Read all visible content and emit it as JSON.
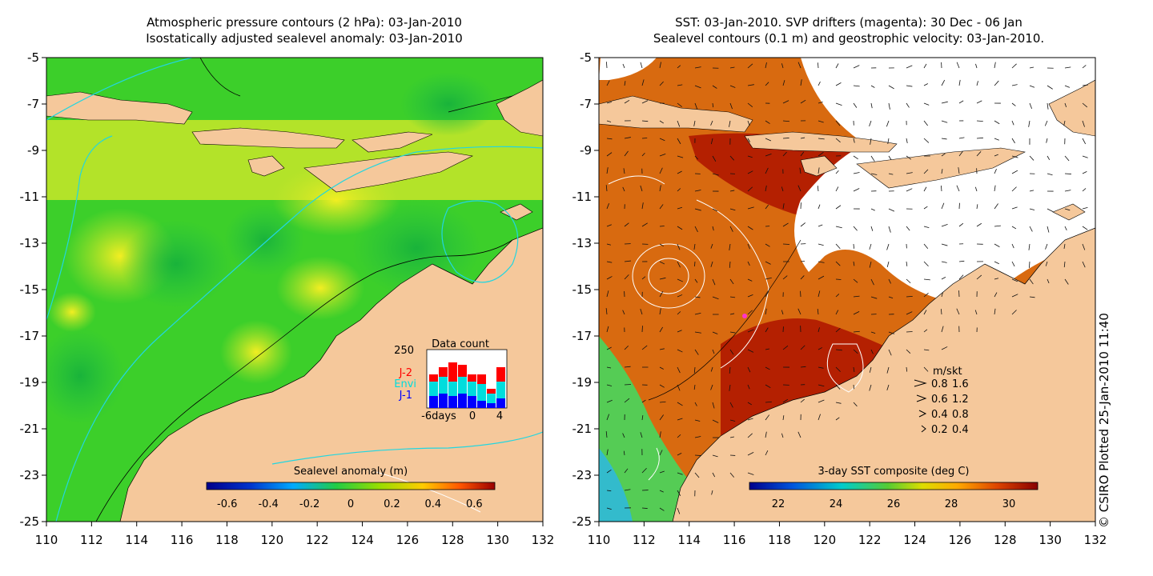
{
  "left_panel": {
    "title_line1": "Atmospheric pressure contours (2 hPa): 03-Jan-2010",
    "title_line2": "Isostatically adjusted sealevel anomaly: 03-Jan-2010",
    "colorbar": {
      "label": "Sealevel anomaly (m)",
      "ticks": [
        "-0.6",
        "-0.4",
        "-0.2",
        "0",
        "0.2",
        "0.4",
        "0.6"
      ],
      "colors": [
        "#00008b",
        "#0033cc",
        "#0099ff",
        "#00e0e0",
        "#22cc44",
        "#66dd00",
        "#ccee00",
        "#ffdd00",
        "#ffaa00",
        "#ff5500",
        "#cc0000",
        "#990000"
      ]
    },
    "data_count": {
      "title": "Data count",
      "max_label": "250",
      "x_labels": [
        "-6days",
        "0",
        "4"
      ],
      "series": [
        {
          "name": "J-2",
          "color": "#ff0000"
        },
        {
          "name": "Envi",
          "color": "#00dddd"
        },
        {
          "name": "J-1",
          "color": "#0000ff"
        }
      ]
    }
  },
  "right_panel": {
    "title_line1": "SST: 03-Jan-2010. SVP drifters (magenta): 30 Dec - 06 Jan",
    "title_line2": "Sealevel contours (0.1 m) and geostrophic velocity: 03-Jan-2010.",
    "colorbar": {
      "label": "3-day SST composite (deg C)",
      "ticks": [
        "22",
        "24",
        "26",
        "28",
        "30"
      ],
      "colors": [
        "#00008b",
        "#0044cc",
        "#0099ff",
        "#00cccc",
        "#33cc55",
        "#99dd00",
        "#eeee00",
        "#ffbb00",
        "#ff7700",
        "#dd3300",
        "#aa0000",
        "#880000"
      ]
    },
    "velocity_legend": {
      "header_ms": "m/s",
      "header_kt": "kt",
      "rows": [
        {
          "ms": "0.8",
          "kt": "1.6"
        },
        {
          "ms": "0.6",
          "kt": "1.2"
        },
        {
          "ms": "0.4",
          "kt": "0.8"
        },
        {
          "ms": "0.2",
          "kt": "0.4"
        }
      ]
    },
    "credit": "© CSIRO Plotted 25-Jan-2010 11:40"
  },
  "axes": {
    "x_ticks": [
      "110",
      "112",
      "114",
      "116",
      "118",
      "120",
      "122",
      "124",
      "126",
      "128",
      "130",
      "132"
    ],
    "y_ticks": [
      "-5",
      "-7",
      "-9",
      "-11",
      "-13",
      "-15",
      "-17",
      "-19",
      "-21",
      "-23",
      "-25"
    ]
  },
  "colors": {
    "land": "#f5c89b",
    "sla_green": "#3ccf2a",
    "sla_yellow": "#c8e629",
    "sst_hot": "#b01800",
    "sst_warm": "#d86a10",
    "cloud": "#ffffff"
  }
}
